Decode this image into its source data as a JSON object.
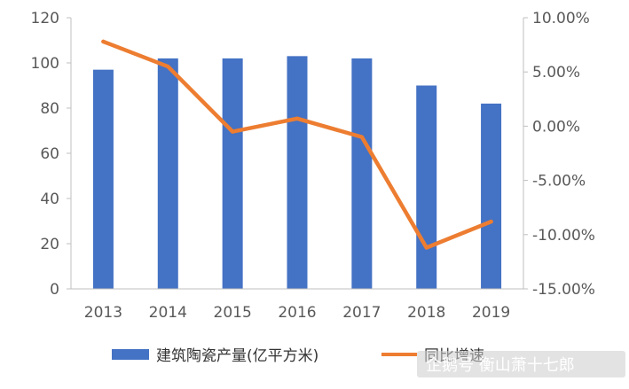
{
  "chart_data": {
    "type": "bar",
    "categories": [
      "2013",
      "2014",
      "2015",
      "2016",
      "2017",
      "2018",
      "2019"
    ],
    "series": [
      {
        "name": "建筑陶瓷产量(亿平方米)",
        "type": "bar",
        "axis": "left",
        "color": "#4472C4",
        "values": [
          97,
          102,
          102,
          103,
          102,
          90,
          82
        ]
      },
      {
        "name": "同比增速",
        "type": "line",
        "axis": "right",
        "color": "#ED7D31",
        "values": [
          7.8,
          5.5,
          -0.5,
          0.7,
          -1.0,
          -11.2,
          -8.8
        ]
      }
    ],
    "y_left": {
      "min": 0,
      "max": 120,
      "ticks": [
        "0",
        "20",
        "40",
        "60",
        "80",
        "100",
        "120"
      ]
    },
    "y_right": {
      "min": -15,
      "max": 10,
      "ticks": [
        "-15.00%",
        "-10.00%",
        "-5.00%",
        "0.00%",
        "5.00%",
        "10.00%"
      ]
    },
    "grid": false,
    "legend_position": "bottom"
  },
  "watermark": {
    "text": "企鹅号 衡山萧十七郎"
  }
}
